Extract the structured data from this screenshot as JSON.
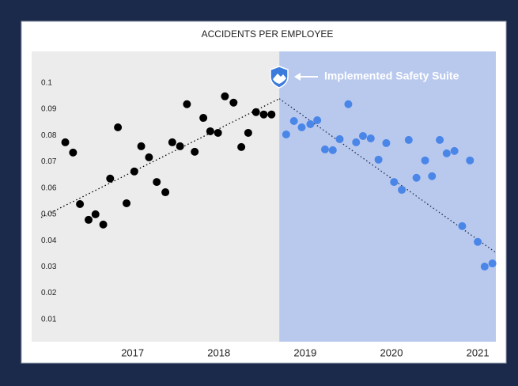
{
  "chart_data": {
    "type": "scatter",
    "title": "ACCIDENTS PER EMPLOYEE",
    "annotation": "Implemented Safety Suite",
    "xlim": [
      2015.83,
      2021.21
    ],
    "ylim": [
      0,
      0.112
    ],
    "xticks": [
      2017,
      2018,
      2019,
      2020,
      2021
    ],
    "yticks": [
      0.01,
      0.02,
      0.03,
      0.04,
      0.05,
      0.06,
      0.07,
      0.08,
      0.09,
      0.1
    ],
    "intervention_x": 2018.7,
    "before_color": "#ececec",
    "after_color": "#b9c9ee",
    "series": [
      {
        "color": "#000000",
        "x": [
          2016.22,
          2016.31,
          2016.39,
          2016.49,
          2016.57,
          2016.66,
          2016.74,
          2016.83,
          2016.93,
          2017.02,
          2017.1,
          2017.19,
          2017.28,
          2017.38,
          2017.46,
          2017.55,
          2017.63,
          2017.72,
          2017.82,
          2017.9,
          2017.99,
          2018.07,
          2018.17,
          2018.26,
          2018.34,
          2018.43,
          2018.52,
          2018.61
        ],
        "values": [
          0.0774,
          0.0735,
          0.0539,
          0.0479,
          0.05,
          0.0461,
          0.0636,
          0.0831,
          0.0542,
          0.0663,
          0.0759,
          0.0717,
          0.0623,
          0.0584,
          0.0774,
          0.0759,
          0.0919,
          0.0738,
          0.0867,
          0.0816,
          0.081,
          0.0949,
          0.0925,
          0.0756,
          0.081,
          0.0889,
          0.088,
          0.088
        ]
      },
      {
        "color": "#4a86e8",
        "x": [
          2018.78,
          2018.87,
          2018.96,
          2019.06,
          2019.14,
          2019.23,
          2019.32,
          2019.4,
          2019.5,
          2019.59,
          2019.67,
          2019.76,
          2019.85,
          2019.94,
          2020.03,
          2020.12,
          2020.2,
          2020.29,
          2020.39,
          2020.47,
          2020.56,
          2020.64,
          2020.73,
          2020.82,
          2020.91,
          2021.0,
          2021.08,
          2021.17
        ],
        "values": [
          0.0804,
          0.0855,
          0.0831,
          0.0843,
          0.0858,
          0.0747,
          0.0744,
          0.0786,
          0.0919,
          0.0774,
          0.0798,
          0.0789,
          0.0708,
          0.0771,
          0.0623,
          0.0593,
          0.0783,
          0.0639,
          0.0705,
          0.0645,
          0.0783,
          0.0732,
          0.0741,
          0.0455,
          0.0705,
          0.0395,
          0.0301,
          0.0313
        ]
      }
    ],
    "trendlines": [
      {
        "color": "#000000",
        "x": [
          2015.94,
          2018.7
        ],
        "values": [
          0.0488,
          0.094
        ]
      },
      {
        "color": "#1b2a4a",
        "x": [
          2018.7,
          2021.22
        ],
        "values": [
          0.094,
          0.0352
        ]
      }
    ]
  }
}
